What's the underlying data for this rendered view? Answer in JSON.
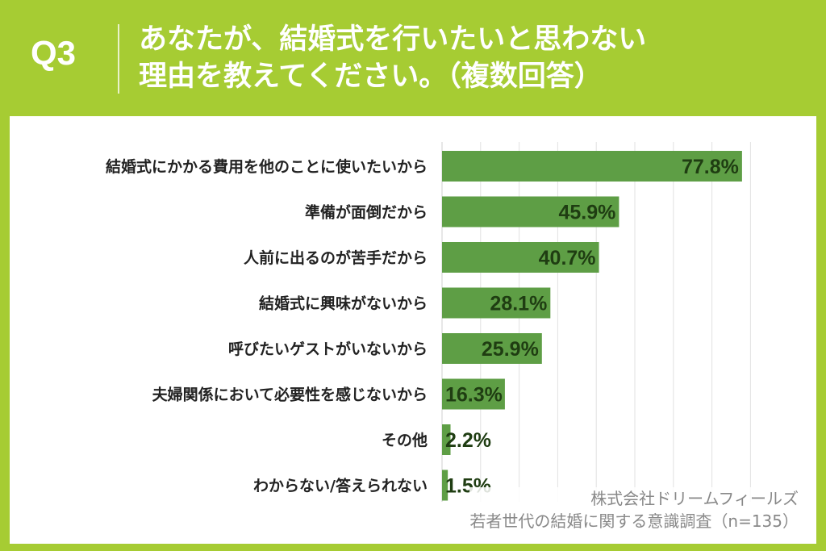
{
  "header": {
    "question_label": "Q3",
    "title_line1": "あなたが、結婚式を行いたいと思わない",
    "title_line2": "理由を教えてください。（複数回答）"
  },
  "source": {
    "line1": "株式会社ドリームフィールズ",
    "line2": "若者世代の結婚に関する意識調査（n=135）"
  },
  "colors": {
    "background": "#a6cc33",
    "bar": "#5e9e45",
    "panel": "#ffffff"
  },
  "chart_data": {
    "type": "bar",
    "orientation": "horizontal",
    "categories": [
      "結婚式にかかる費用を他のことに使いたいから",
      "準備が面倒だから",
      "人前に出るのが苦手だから",
      "結婚式に興味がないから",
      "呼びたいゲストがいないから",
      "夫婦関係において必要性を感じないから",
      "その他",
      "わからない/答えられない"
    ],
    "values": [
      77.8,
      45.9,
      40.7,
      28.1,
      25.9,
      16.3,
      2.2,
      1.5
    ],
    "value_labels": [
      "77.8%",
      "45.9%",
      "40.7%",
      "28.1%",
      "25.9%",
      "16.3%",
      "2.2%",
      "1.5%"
    ],
    "title": "",
    "xlabel": "",
    "ylabel": "",
    "xlim": [
      0,
      80
    ],
    "grid": true
  }
}
